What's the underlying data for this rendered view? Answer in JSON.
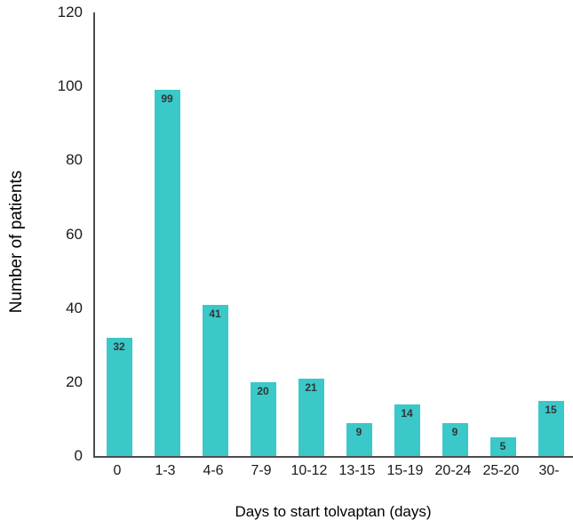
{
  "chart_data": {
    "type": "bar",
    "title": "",
    "categories": [
      "0",
      "1-3",
      "4-6",
      "7-9",
      "10-12",
      "13-15",
      "15-19",
      "20-24",
      "25-20",
      "30-"
    ],
    "values": [
      32,
      99,
      41,
      20,
      21,
      9,
      14,
      9,
      5,
      15
    ],
    "xlabel": "Days to start tolvaptan (days)",
    "ylabel": "Number of patients",
    "ylim": [
      0,
      120
    ],
    "yticks": [
      0,
      20,
      40,
      60,
      80,
      100,
      120
    ],
    "grid": false,
    "legend": "none",
    "value_labels_shown": true,
    "bar_color": "#3bc8c8",
    "axis_color": "#4d4d4d",
    "value_label_color": "#333333",
    "tick_label_color": "#1a1a1a"
  }
}
